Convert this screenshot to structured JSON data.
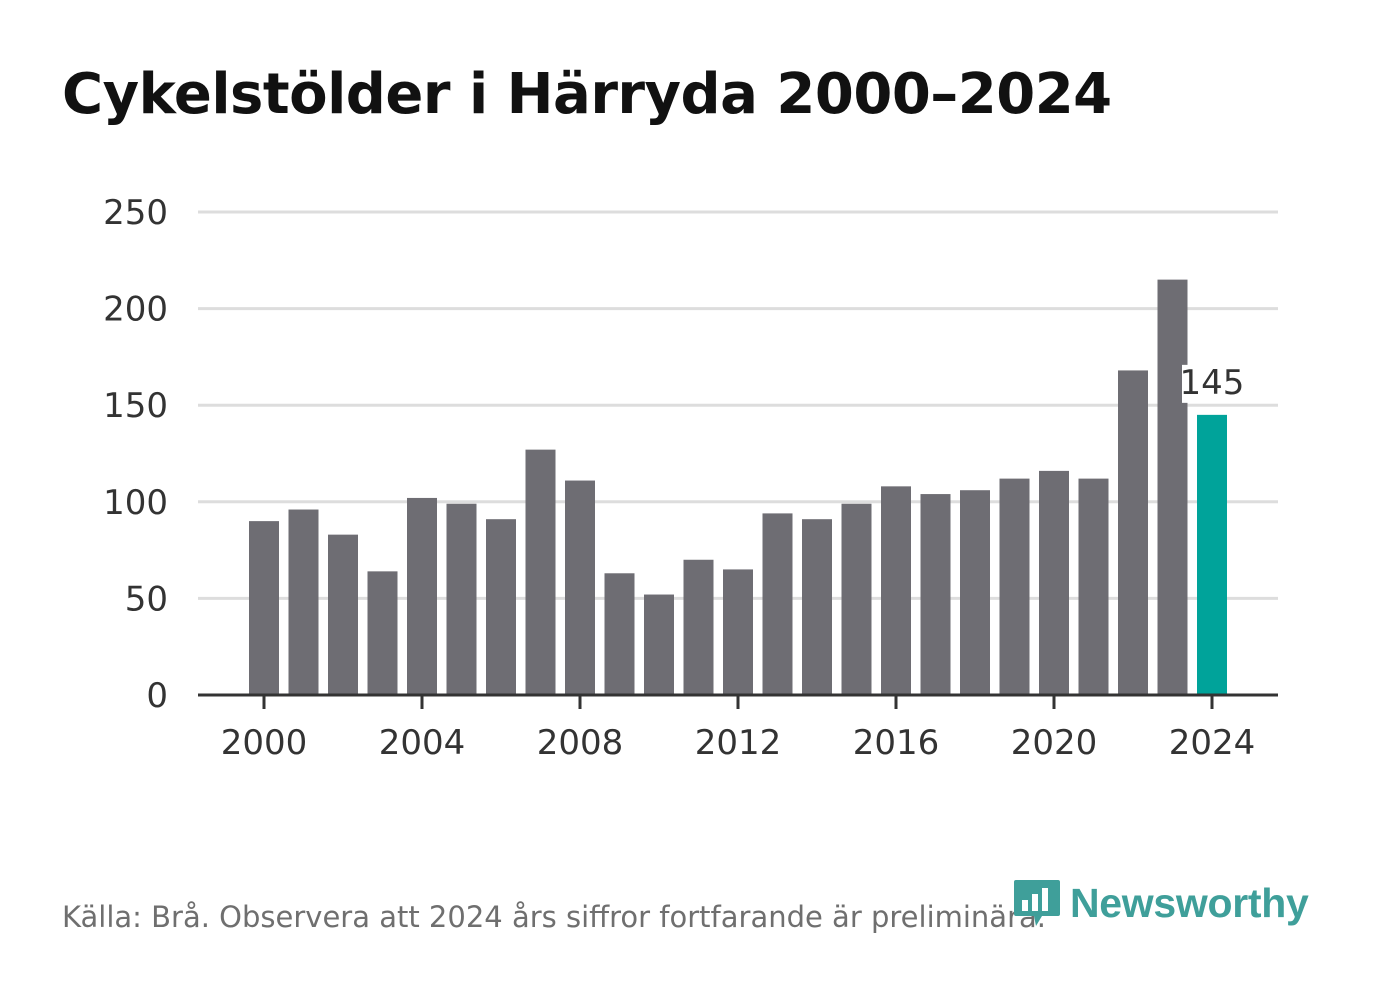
{
  "chart_data": {
    "type": "bar",
    "title": "Cykelstölder i Härryda 2000–2024",
    "xlabel": "",
    "ylabel": "",
    "ylim": [
      0,
      250
    ],
    "yticks": [
      0,
      50,
      100,
      150,
      200,
      250
    ],
    "xticks": [
      2000,
      2004,
      2008,
      2012,
      2016,
      2020,
      2024
    ],
    "categories": [
      2000,
      2001,
      2002,
      2003,
      2004,
      2005,
      2006,
      2007,
      2008,
      2009,
      2010,
      2011,
      2012,
      2013,
      2014,
      2015,
      2016,
      2017,
      2018,
      2019,
      2020,
      2021,
      2022,
      2023,
      2024
    ],
    "values": [
      90,
      96,
      83,
      64,
      102,
      99,
      91,
      127,
      111,
      63,
      52,
      70,
      65,
      94,
      91,
      99,
      108,
      104,
      106,
      112,
      116,
      112,
      168,
      215,
      145
    ],
    "highlight": {
      "year": 2024,
      "label": "145"
    },
    "colors": {
      "bar": "#6e6d73",
      "highlight": "#00a39a",
      "grid": "#dddddd",
      "axis": "#333333"
    }
  },
  "footer": {
    "source": "Källa: Brå. Observera att 2024 års siffror fortfarande är preliminära.",
    "brand": "Newsworthy",
    "brand_icon": "bar-chart-speech-bubble-icon"
  }
}
